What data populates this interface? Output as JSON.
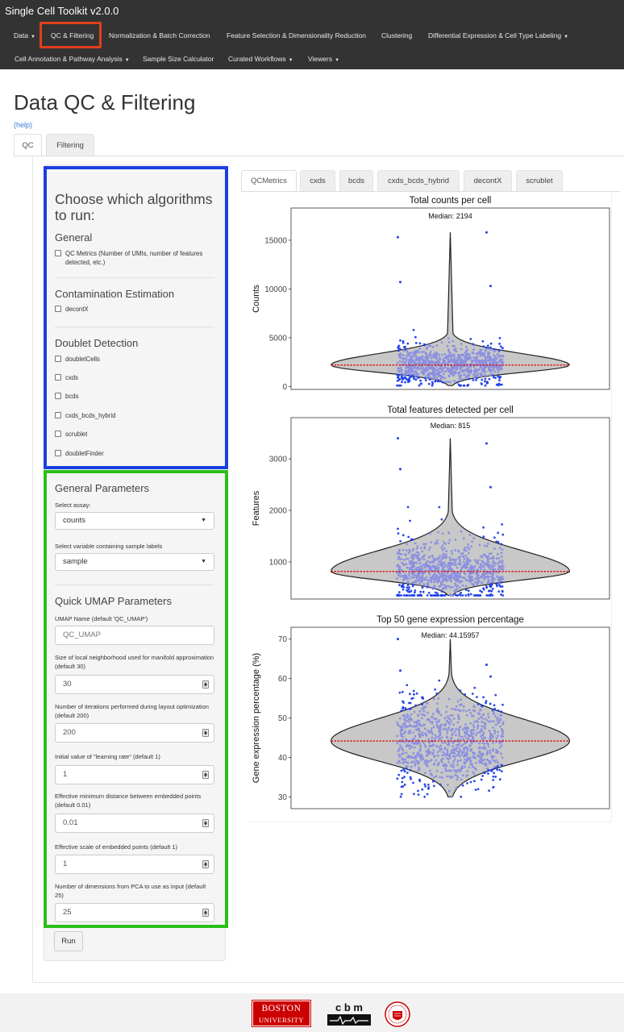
{
  "app": {
    "title": "Single Cell Toolkit v2.0.0"
  },
  "navbar": {
    "items": [
      {
        "label": "Data",
        "dropdown": true
      },
      {
        "label": "QC & Filtering",
        "dropdown": false
      },
      {
        "label": "Normalization & Batch Correction",
        "dropdown": false
      },
      {
        "label": "Feature Selection & Dimensionality Reduction",
        "dropdown": false
      },
      {
        "label": "Clustering",
        "dropdown": false
      },
      {
        "label": "Differential Expression & Cell Type Labeling",
        "dropdown": true
      },
      {
        "label": "Cell Annotation & Pathway Analysis",
        "dropdown": true
      },
      {
        "label": "Sample Size Calculator",
        "dropdown": false
      },
      {
        "label": "Curated Workflows",
        "dropdown": true
      },
      {
        "label": "Viewers",
        "dropdown": true
      }
    ],
    "highlight_color": "#e0401c"
  },
  "page": {
    "title": "Data QC & Filtering",
    "help": "(help)"
  },
  "main_tabs": [
    {
      "label": "QC"
    },
    {
      "label": "Filtering"
    }
  ],
  "sidebar": {
    "algorithms_heading": "Choose which algorithms to run:",
    "general": {
      "heading": "General",
      "options": [
        {
          "label": "QC Metrics (Number of UMIs, number of features detected, etc.)",
          "checked": false
        }
      ]
    },
    "contamination": {
      "heading": "Contamination Estimation",
      "options": [
        {
          "label": "decontX",
          "checked": false
        }
      ]
    },
    "doublet": {
      "heading": "Doublet Detection",
      "options": [
        {
          "label": "doubletCells",
          "checked": false
        },
        {
          "label": "cxds",
          "checked": false
        },
        {
          "label": "bcds",
          "checked": false
        },
        {
          "label": "cxds_bcds_hybrid",
          "checked": false
        },
        {
          "label": "scrublet",
          "checked": false
        },
        {
          "label": "doubletFinder",
          "checked": false
        }
      ]
    },
    "general_params": {
      "heading": "General Parameters",
      "assay_label": "Select assay:",
      "assay_value": "counts",
      "sample_label": "Select variable containing sample labels",
      "sample_value": "sample"
    },
    "umap_params": {
      "heading": "Quick UMAP Parameters",
      "name_label": "UMAP Name (default 'QC_UMAP')",
      "name_placeholder": "QC_UMAP",
      "fields": [
        {
          "label": "Size of local neighborhood used for manifold approximation (default 30)",
          "value": "30"
        },
        {
          "label": "Number of iterations performed during layout optimization (default 200)",
          "value": "200"
        },
        {
          "label": "Initial value of \"learning rate\" (default 1)",
          "value": "1"
        },
        {
          "label": "Effective minimum distance between embedded points (default 0.01)",
          "value": "0.01"
        },
        {
          "label": "Effective scale of embedded points (default 1)",
          "value": "1"
        },
        {
          "label": "Number of dimensions from PCA to use as input (default 25)",
          "value": "25"
        }
      ]
    },
    "run_label": "Run",
    "blue_box_color": "#1a3fe0",
    "green_box_color": "#2cbe19"
  },
  "plot_tabs": [
    {
      "label": "QCMetrics"
    },
    {
      "label": "cxds"
    },
    {
      "label": "bcds"
    },
    {
      "label": "cxds_bcds_hybrid"
    },
    {
      "label": "decontX"
    },
    {
      "label": "scrublet"
    }
  ],
  "chart_data": [
    {
      "type": "violin",
      "title": "Total counts per cell",
      "annotation": "Median: 2194",
      "ylabel": "Counts",
      "yticks": [
        0,
        5000,
        10000,
        15000
      ],
      "ylim": [
        -300,
        18300
      ],
      "median": 2194,
      "box_range": [
        100,
        5500
      ],
      "max": 15800,
      "outliers": [
        15300,
        15800,
        10700,
        10300
      ],
      "point_color": "#1f3fe8",
      "median_color": "#dd1111"
    },
    {
      "type": "violin",
      "title": "Total features detected per cell",
      "annotation": "Median: 815",
      "ylabel": "Features",
      "yticks": [
        1000,
        2000,
        3000
      ],
      "ylim": [
        280,
        3800
      ],
      "median": 815,
      "box_range": [
        350,
        1950
      ],
      "max": 3400,
      "outliers": [
        3400,
        3300,
        2800,
        2450
      ],
      "point_color": "#1f3fe8",
      "median_color": "#dd1111"
    },
    {
      "type": "violin",
      "title": "Top 50 gene expression percentage",
      "annotation": "Median: 44.15957",
      "ylabel": "Gene expression percentage (%)",
      "yticks": [
        30,
        40,
        50,
        60,
        70
      ],
      "ylim": [
        27,
        73
      ],
      "median": 44.15957,
      "box_range": [
        30,
        60
      ],
      "max": 70,
      "outliers": [
        70,
        63.5,
        62,
        60.5
      ],
      "point_color": "#1f3fe8",
      "median_color": "#dd1111"
    }
  ],
  "footer": {
    "bu_line1": "BOSTON",
    "bu_line2": "UNIVERSITY",
    "cbm_text": "c b m",
    "bu_color": "#cc0000"
  }
}
